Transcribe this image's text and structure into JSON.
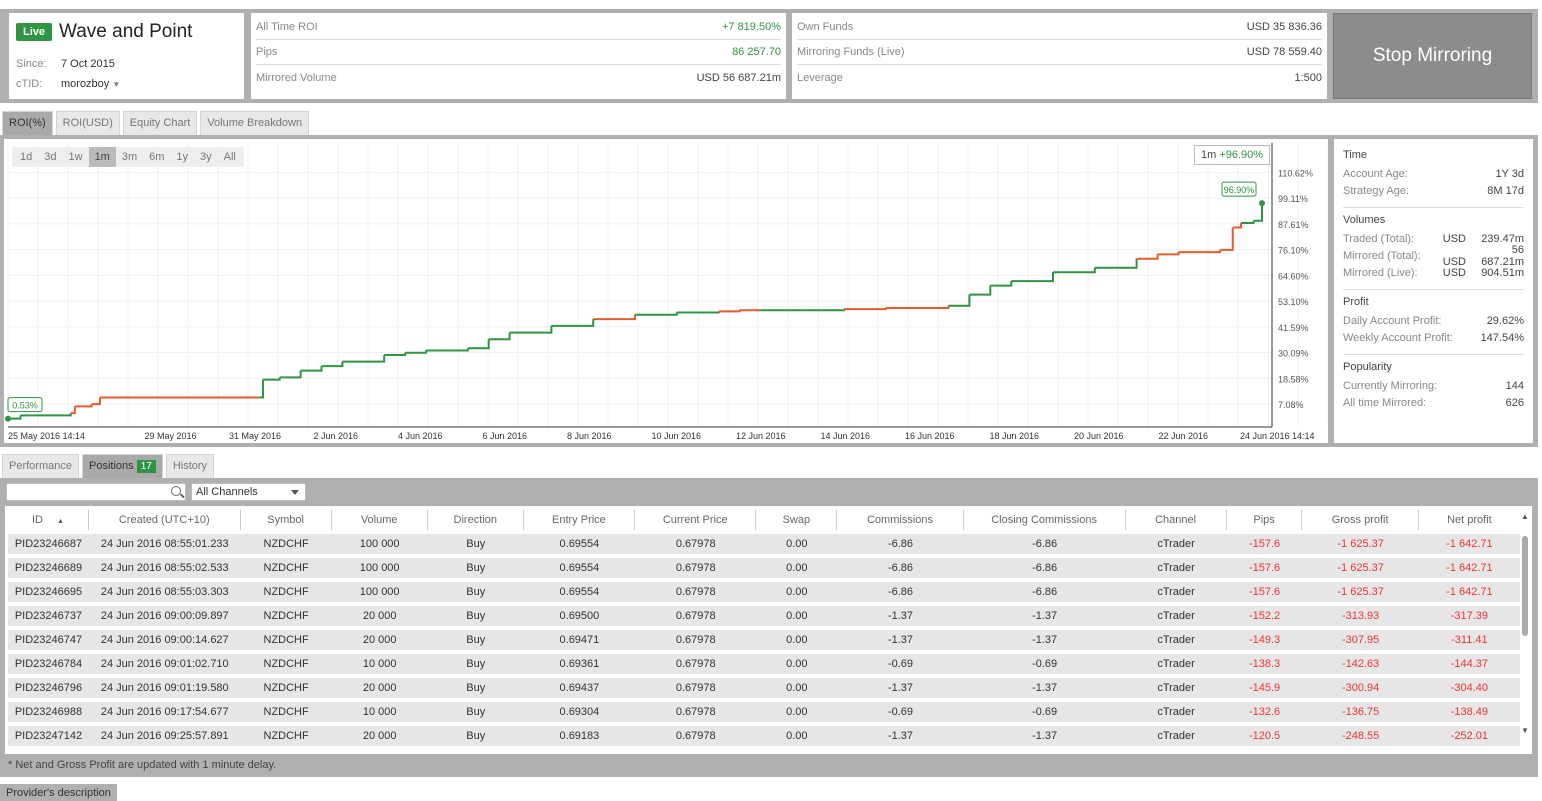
{
  "header": {
    "live_badge": "Live",
    "provider_name": "Wave and Point",
    "since_label": "Since:",
    "since_value": "7 Oct 2015",
    "ctid_label": "cTID:",
    "ctid_value": "morozboy",
    "stats_left": [
      {
        "label": "All Time ROI",
        "value": "+7 819.50%",
        "green": true
      },
      {
        "label": "Pips",
        "value": "86 257.70",
        "green": true
      },
      {
        "label": "Mirrored Volume",
        "value": "USD 56 687.21m",
        "green": false
      }
    ],
    "stats_right": [
      {
        "label": "Own Funds",
        "value": "USD 35 836.36"
      },
      {
        "label": "Mirroring Funds (Live)",
        "value": "USD 78 559.40"
      },
      {
        "label": "Leverage",
        "value": "1:500"
      }
    ],
    "stop_button": "Stop Mirroring"
  },
  "chart_tabs": [
    "ROI(%)",
    "ROI(USD)",
    "Equity Chart",
    "Volume Breakdown"
  ],
  "ranges": [
    "1d",
    "3d",
    "1w",
    "1m",
    "3m",
    "6m",
    "1y",
    "3y",
    "All"
  ],
  "roi_box": {
    "period": "1m",
    "value": "+96.90%"
  },
  "chart_data": {
    "type": "line",
    "y_ticks": [
      "110.62%",
      "99.11%",
      "87.61%",
      "76.10%",
      "64.60%",
      "53.10%",
      "41.59%",
      "30.09%",
      "18.58%",
      "7.08%"
    ],
    "x_ticks": [
      "25 May 2016 14:14",
      "29 May 2016",
      "31 May 2016",
      "2 Jun 2016",
      "4 Jun 2016",
      "6 Jun 2016",
      "8 Jun 2016",
      "10 Jun 2016",
      "12 Jun 2016",
      "14 Jun 2016",
      "16 Jun 2016",
      "18 Jun 2016",
      "20 Jun 2016",
      "22 Jun 2016",
      "24 Jun 2016 14:14"
    ],
    "start_label": "0.53%",
    "end_label": "96.90%",
    "series": [
      {
        "x": [
          0,
          0.3,
          1.5,
          1.6,
          2,
          2.2,
          3,
          6,
          6.1,
          6.5,
          7,
          7.5,
          8,
          9,
          9.5,
          10,
          10.5,
          11,
          11.5,
          12,
          13,
          14,
          15,
          16,
          16.5,
          17,
          17.5,
          18,
          19,
          20,
          21,
          22,
          22.5,
          23,
          23.5,
          24,
          25,
          26,
          27,
          27.5,
          28,
          29,
          29.3,
          29.5,
          29.8,
          30
        ],
        "y": [
          0.53,
          2,
          3,
          6,
          7,
          10,
          10,
          10,
          18,
          19,
          22,
          24,
          26,
          29,
          30,
          31,
          31,
          32,
          36,
          39,
          42,
          45,
          47,
          48,
          48,
          48.5,
          49,
          49,
          49,
          49.5,
          50,
          50,
          51,
          56,
          60,
          62,
          66,
          68,
          72,
          74,
          75,
          76,
          86,
          88,
          89,
          96.9
        ]
      }
    ],
    "red_segments": [
      [
        1.5,
        6
      ],
      [
        14,
        15
      ],
      [
        17,
        18
      ],
      [
        20,
        21
      ],
      [
        21.5,
        22.5
      ],
      [
        27,
        29.5
      ]
    ]
  },
  "side": {
    "time_h": "Time",
    "acc_age_l": "Account Age:",
    "acc_age_v": "1Y 3d",
    "strat_age_l": "Strategy Age:",
    "strat_age_v": "8M 17d",
    "vol_h": "Volumes",
    "traded_l": "Traded (Total):",
    "traded_c": "USD",
    "traded_v": "239.47m",
    "mirt_l": "Mirrored (Total):",
    "mirt_c": "USD",
    "mirt_v": "56 687.21m",
    "mirl_l": "Mirrored (Live):",
    "mirl_c": "USD",
    "mirl_v": "904.51m",
    "profit_h": "Profit",
    "daily_l": "Daily Account Profit:",
    "daily_v": "29.62%",
    "weekly_l": "Weekly Account Profit:",
    "weekly_v": "147.54%",
    "pop_h": "Popularity",
    "cur_l": "Currently Mirroring:",
    "cur_v": "144",
    "all_l": "All time Mirrored:",
    "all_v": "626"
  },
  "grid_tabs": {
    "performance": "Performance",
    "positions": "Positions",
    "positions_count": "17",
    "history": "History"
  },
  "channel_select": "All Channels",
  "columns": [
    "ID",
    "Created (UTC+10)",
    "Symbol",
    "Volume",
    "Direction",
    "Entry Price",
    "Current Price",
    "Swap",
    "Commissions",
    "Closing Commissions",
    "Channel",
    "Pips",
    "Gross profit",
    "Net profit"
  ],
  "rows": [
    [
      "PID23246687",
      "24 Jun 2016 08:55:01.233",
      "NZDCHF",
      "100 000",
      "Buy",
      "0.69554",
      "0.67978",
      "0.00",
      "-6.86",
      "-6.86",
      "cTrader",
      "-157.6",
      "-1 625.37",
      "-1 642.71"
    ],
    [
      "PID23246689",
      "24 Jun 2016 08:55:02.533",
      "NZDCHF",
      "100 000",
      "Buy",
      "0.69554",
      "0.67978",
      "0.00",
      "-6.86",
      "-6.86",
      "cTrader",
      "-157.6",
      "-1 625.37",
      "-1 642.71"
    ],
    [
      "PID23246695",
      "24 Jun 2016 08:55:03.303",
      "NZDCHF",
      "100 000",
      "Buy",
      "0.69554",
      "0.67978",
      "0.00",
      "-6.86",
      "-6.86",
      "cTrader",
      "-157.6",
      "-1 625.37",
      "-1 642.71"
    ],
    [
      "PID23246737",
      "24 Jun 2016 09:00:09.897",
      "NZDCHF",
      "20 000",
      "Buy",
      "0.69500",
      "0.67978",
      "0.00",
      "-1.37",
      "-1.37",
      "cTrader",
      "-152.2",
      "-313.93",
      "-317.39"
    ],
    [
      "PID23246747",
      "24 Jun 2016 09:00:14.627",
      "NZDCHF",
      "20 000",
      "Buy",
      "0.69471",
      "0.67978",
      "0.00",
      "-1.37",
      "-1.37",
      "cTrader",
      "-149.3",
      "-307.95",
      "-311.41"
    ],
    [
      "PID23246784",
      "24 Jun 2016 09:01:02.710",
      "NZDCHF",
      "10 000",
      "Buy",
      "0.69361",
      "0.67978",
      "0.00",
      "-0.69",
      "-0.69",
      "cTrader",
      "-138.3",
      "-142.63",
      "-144.37"
    ],
    [
      "PID23246796",
      "24 Jun 2016 09:01:19.580",
      "NZDCHF",
      "20 000",
      "Buy",
      "0.69437",
      "0.67978",
      "0.00",
      "-1.37",
      "-1.37",
      "cTrader",
      "-145.9",
      "-300.94",
      "-304.40"
    ],
    [
      "PID23246988",
      "24 Jun 2016 09:17:54.677",
      "NZDCHF",
      "10 000",
      "Buy",
      "0.69304",
      "0.67978",
      "0.00",
      "-0.69",
      "-0.69",
      "cTrader",
      "-132.6",
      "-136.75",
      "-138.49"
    ],
    [
      "PID23247142",
      "24 Jun 2016 09:25:57.891",
      "NZDCHF",
      "20 000",
      "Buy",
      "0.69183",
      "0.67978",
      "0.00",
      "-1.37",
      "-1.37",
      "cTrader",
      "-120.5",
      "-248.55",
      "-252.01"
    ]
  ],
  "note": "* Net and Gross Profit are updated with 1 minute delay.",
  "provider_tab": "Provider's description",
  "colors": {
    "green": "#2f9443",
    "red": "#e65c2b"
  }
}
